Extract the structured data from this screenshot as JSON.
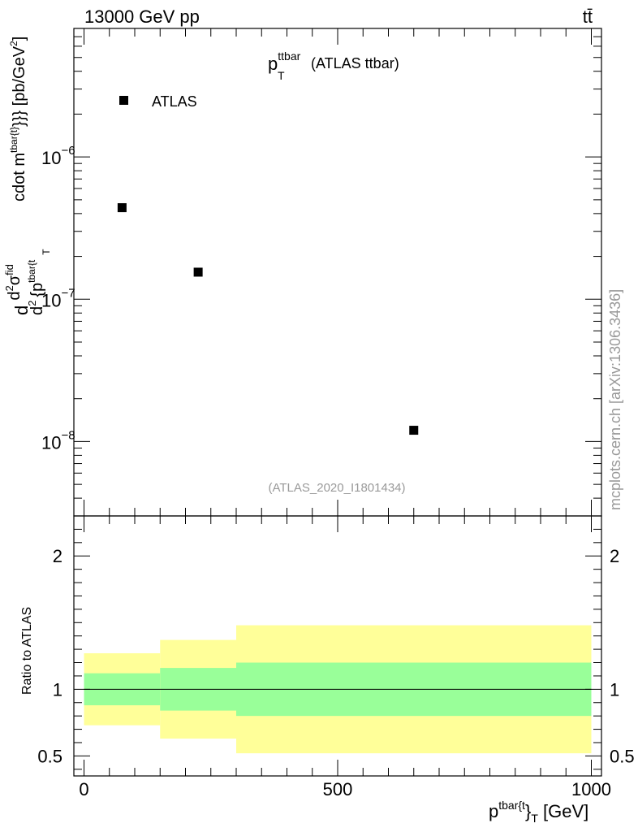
{
  "header": {
    "left": "13000 GeV pp",
    "right": "tt̄"
  },
  "side_label": "mcplots.cern.ch [arXiv:1306.3436]",
  "chart_data": [
    {
      "type": "scatter",
      "title": {
        "main": "p",
        "sup": "ttbar",
        "sub": "T",
        "tail": "(ATLAS ttbar)"
      },
      "analysis_label": "(ATLAS_2020_I1801434)",
      "ylabel": "d d²σ^{fid} / d² {p^{tbar{t}}_T cdot m^{tbar{t}}}} [pb/GeV²]",
      "ylabel_parts": {
        "a": "d",
        "b": "d",
        "b_sup": "2",
        "c": "σ",
        "c_sup": "fid",
        "d": "d",
        "d_sup": "2",
        "e": "{p",
        "e_sup": "tbar{t",
        "e_sub": "T",
        "f": "cdot m",
        "f_sup": "tbar{t}",
        "g": "}}} [pb/GeV",
        "g_sup": "2",
        "h": "]"
      },
      "y_scale": "log",
      "ylim": [
        3e-09,
        8e-06
      ],
      "xlim": [
        -20,
        1020
      ],
      "y_ticks": [
        {
          "value": 1e-06,
          "base": "10",
          "exp": "−6"
        },
        {
          "value": 1e-07,
          "base": "10",
          "exp": "−7"
        },
        {
          "value": 1e-08,
          "base": "10",
          "exp": "−8"
        }
      ],
      "legend": {
        "placement": "top-left",
        "entries": [
          {
            "name": "ATLAS",
            "color": "#000000",
            "marker": "square"
          }
        ]
      },
      "series": [
        {
          "name": "ATLAS",
          "color": "#000000",
          "x": [
            75,
            225,
            650
          ],
          "y": [
            4.4e-07,
            1.55e-07,
            1.2e-08
          ]
        }
      ]
    },
    {
      "type": "area",
      "ylabel": "Ratio to ATLAS",
      "xlabel_parts": {
        "a": "p",
        "sup": "tbar{t",
        "mid": "}",
        "sub": "T",
        "b": " [GeV]"
      },
      "ylim": [
        0.35,
        2.3
      ],
      "xlim": [
        -20,
        1020
      ],
      "x_ticks": [
        {
          "value": 0,
          "label": "0"
        },
        {
          "value": 500,
          "label": "500"
        },
        {
          "value": 1000,
          "label": "1000"
        }
      ],
      "y_ticks": [
        {
          "value": 0.5,
          "label": "0.5"
        },
        {
          "value": 1,
          "label": "1"
        },
        {
          "value": 2,
          "label": "2"
        }
      ],
      "reference_line": 1,
      "bins": [
        {
          "lo": 0,
          "hi": 150,
          "inner": [
            0.88,
            1.12
          ],
          "outer": [
            0.73,
            1.27
          ]
        },
        {
          "lo": 150,
          "hi": 300,
          "inner": [
            0.84,
            1.16
          ],
          "outer": [
            0.63,
            1.37
          ]
        },
        {
          "lo": 300,
          "hi": 1000,
          "inner": [
            0.8,
            1.2
          ],
          "outer": [
            0.52,
            1.48
          ]
        }
      ],
      "colors": {
        "inner": "#99ff99",
        "outer": "#ffff99"
      }
    }
  ]
}
